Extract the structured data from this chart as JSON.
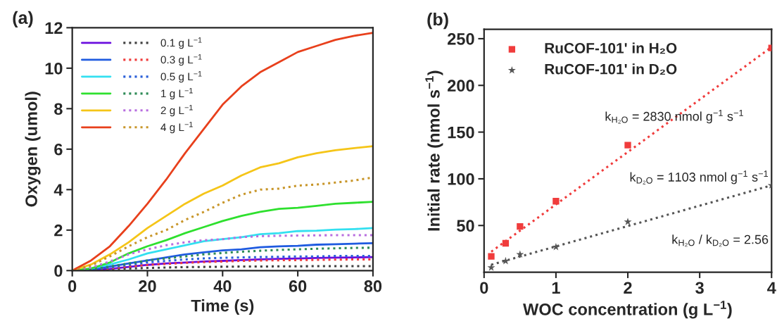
{
  "chart_data": [
    {
      "type": "line",
      "title": "(a)",
      "xlabel": "Time (s)",
      "ylabel": "Oxygen (umol)",
      "xlim": [
        0,
        80
      ],
      "ylim": [
        0,
        12
      ],
      "xticks": [
        0,
        20,
        40,
        60,
        80
      ],
      "yticks": [
        0,
        2,
        4,
        6,
        8,
        10,
        12
      ],
      "grid": false,
      "legend": "top left",
      "marker": "none",
      "x": [
        0,
        5,
        10,
        15,
        20,
        25,
        30,
        35,
        40,
        45,
        50,
        55,
        60,
        65,
        70,
        75,
        80
      ],
      "series": [
        {
          "color": "#6a0dde",
          "line_style": "solid",
          "values": [
            0,
            0.02,
            0.08,
            0.18,
            0.28,
            0.35,
            0.4,
            0.45,
            0.48,
            0.52,
            0.55,
            0.58,
            0.6,
            0.62,
            0.64,
            0.65,
            0.67
          ]
        },
        {
          "name": "0.1 g L$^{−1}$",
          "color": "#404040",
          "line_style": "dotted",
          "values": [
            0,
            0.02,
            0.06,
            0.1,
            0.13,
            0.15,
            0.17,
            0.18,
            0.19,
            0.2,
            0.2,
            0.21,
            0.21,
            0.22,
            0.22,
            0.22,
            0.22
          ]
        },
        {
          "color": "#1f5be0",
          "line_style": "solid",
          "values": [
            0,
            0.05,
            0.2,
            0.35,
            0.5,
            0.65,
            0.8,
            0.9,
            1.0,
            1.05,
            1.15,
            1.2,
            1.22,
            1.28,
            1.3,
            1.33,
            1.35
          ]
        },
        {
          "name": "0.3 g L$^{−1}$",
          "color": "#f03c3c",
          "line_style": "dotted",
          "values": [
            0,
            0.03,
            0.1,
            0.2,
            0.28,
            0.33,
            0.38,
            0.42,
            0.45,
            0.48,
            0.5,
            0.51,
            0.52,
            0.53,
            0.54,
            0.55,
            0.55
          ]
        },
        {
          "color": "#33e0f0",
          "line_style": "solid",
          "values": [
            0,
            0.1,
            0.3,
            0.55,
            0.85,
            1.05,
            1.25,
            1.45,
            1.55,
            1.65,
            1.8,
            1.85,
            1.95,
            1.97,
            2.02,
            2.05,
            2.1
          ]
        },
        {
          "name": "0.5 g L$^{−1}$",
          "color": "#2a5fd8",
          "line_style": "dotted",
          "values": [
            0,
            0.05,
            0.15,
            0.28,
            0.4,
            0.48,
            0.55,
            0.6,
            0.63,
            0.65,
            0.67,
            0.68,
            0.7,
            0.7,
            0.72,
            0.72,
            0.72
          ]
        },
        {
          "color": "#2ee02e",
          "line_style": "solid",
          "values": [
            0,
            0.1,
            0.4,
            0.85,
            1.2,
            1.5,
            1.85,
            2.15,
            2.45,
            2.7,
            2.9,
            3.05,
            3.1,
            3.2,
            3.3,
            3.35,
            3.4
          ]
        },
        {
          "name": "1 g L$^{−1}$",
          "color": "#2e8b57",
          "line_style": "dotted",
          "values": [
            0,
            0.05,
            0.2,
            0.35,
            0.5,
            0.6,
            0.7,
            0.8,
            0.87,
            0.93,
            0.98,
            1.02,
            1.05,
            1.08,
            1.1,
            1.12,
            1.13
          ]
        },
        {
          "color": "#f5c518",
          "line_style": "solid",
          "values": [
            0,
            0.3,
            0.8,
            1.4,
            2.1,
            2.7,
            3.3,
            3.8,
            4.2,
            4.7,
            5.1,
            5.3,
            5.6,
            5.8,
            5.95,
            6.05,
            6.15
          ]
        },
        {
          "name": "2 g L$^{−1}$",
          "color": "#b86ee0",
          "line_style": "dotted",
          "values": [
            0,
            0.15,
            0.45,
            0.8,
            1.05,
            1.25,
            1.4,
            1.5,
            1.55,
            1.65,
            1.7,
            1.72,
            1.73,
            1.74,
            1.75,
            1.75,
            1.75
          ]
        },
        {
          "color": "#e8401c",
          "line_style": "solid",
          "values": [
            0,
            0.5,
            1.2,
            2.2,
            3.3,
            4.5,
            5.8,
            7.0,
            8.2,
            9.1,
            9.8,
            10.3,
            10.8,
            11.1,
            11.4,
            11.6,
            11.75
          ]
        },
        {
          "name": "4 g L$^{−1}$",
          "color": "#c8962a",
          "line_style": "dotted",
          "values": [
            0,
            0.25,
            0.7,
            1.2,
            1.65,
            2.0,
            2.5,
            2.9,
            3.35,
            3.75,
            4.0,
            4.05,
            4.2,
            4.25,
            4.35,
            4.45,
            4.6
          ]
        }
      ]
    },
    {
      "type": "scatter",
      "title": "(b)",
      "xlabel": "WOC concentration (g L$^{−1}$)",
      "ylabel": "Initial rate (nmol s$^{−1}$)",
      "xlim": [
        0,
        4
      ],
      "ylim": [
        0,
        260
      ],
      "xticks": [
        0,
        1,
        2,
        3,
        4
      ],
      "yticks": [
        50,
        100,
        150,
        200,
        250
      ],
      "grid": false,
      "legend": "top left",
      "annotations": [
        "k$_{H₂O}$ = 2830 nmol g$^{−1}$ s$^{−1}$",
        "k$_{D₂O}$ = 1103 nmol g$^{−1}$ s$^{−1}$",
        "k$_{H₂O}$ / k$_{D₂O}$ = 2.56"
      ],
      "series": [
        {
          "name": "RuCOF-101' in H₂O",
          "type": "scatter",
          "marker": "square",
          "color": "#f03c3c",
          "x": [
            0.1,
            0.3,
            0.5,
            1,
            2,
            4
          ],
          "values": [
            17,
            31,
            49,
            76,
            136,
            240
          ]
        },
        {
          "name": "RuCOF-101' in D₂O",
          "type": "scatter",
          "marker": "star",
          "color": "#555555",
          "x": [
            0.1,
            0.3,
            0.5,
            1,
            2,
            4
          ],
          "values": [
            5,
            12,
            19,
            27,
            54,
            93
          ]
        },
        {
          "type": "line",
          "line_style": "dotted",
          "color": "#f03c3c",
          "x": [
            0.1,
            4
          ],
          "values": [
            22,
            241
          ]
        },
        {
          "type": "line",
          "line_style": "dotted",
          "color": "#555555",
          "x": [
            0.1,
            4
          ],
          "values": [
            8,
            93
          ]
        }
      ]
    }
  ]
}
